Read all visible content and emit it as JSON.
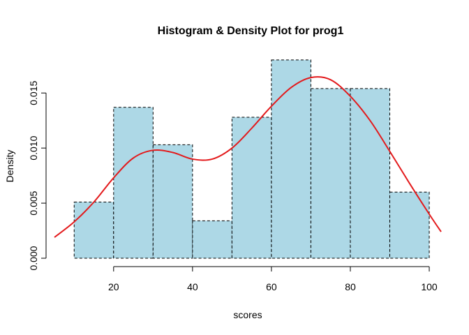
{
  "chart_data": {
    "type": "bar",
    "title": "Histogram & Density Plot for prog1",
    "xlabel": "scores",
    "ylabel": "Density",
    "xlim": [
      5,
      103
    ],
    "ylim": [
      0,
      0.0185
    ],
    "grid": false,
    "x_ticks": [
      20,
      40,
      60,
      80,
      100
    ],
    "x_tick_labels": [
      "20",
      "40",
      "60",
      "80",
      "100"
    ],
    "y_ticks": [
      0,
      0.005,
      0.01,
      0.015
    ],
    "y_tick_labels": [
      "0.000",
      "0.005",
      "0.010",
      "0.015"
    ],
    "bins": [
      {
        "x0": 10,
        "x1": 20,
        "density": 0.0051
      },
      {
        "x0": 20,
        "x1": 30,
        "density": 0.0137
      },
      {
        "x0": 30,
        "x1": 40,
        "density": 0.0103
      },
      {
        "x0": 40,
        "x1": 50,
        "density": 0.0034
      },
      {
        "x0": 50,
        "x1": 60,
        "density": 0.0128
      },
      {
        "x0": 60,
        "x1": 70,
        "density": 0.018
      },
      {
        "x0": 70,
        "x1": 80,
        "density": 0.0154
      },
      {
        "x0": 80,
        "x1": 90,
        "density": 0.0154
      },
      {
        "x0": 90,
        "x1": 100,
        "density": 0.006
      }
    ],
    "density_curve": {
      "x": [
        5,
        10,
        15,
        20,
        25,
        30,
        35,
        40,
        45,
        50,
        55,
        60,
        65,
        70,
        75,
        80,
        85,
        90,
        95,
        100,
        103
      ],
      "y": [
        0.0019,
        0.0033,
        0.0051,
        0.0073,
        0.0091,
        0.0098,
        0.0096,
        0.009,
        0.009,
        0.01,
        0.0118,
        0.0138,
        0.0155,
        0.0164,
        0.0162,
        0.0147,
        0.0125,
        0.0097,
        0.0068,
        0.004,
        0.0024
      ]
    },
    "colors": {
      "bar_fill": "#add8e6",
      "bar_border": "#000000",
      "curve": "#e31a1c",
      "axis": "#000000"
    }
  }
}
